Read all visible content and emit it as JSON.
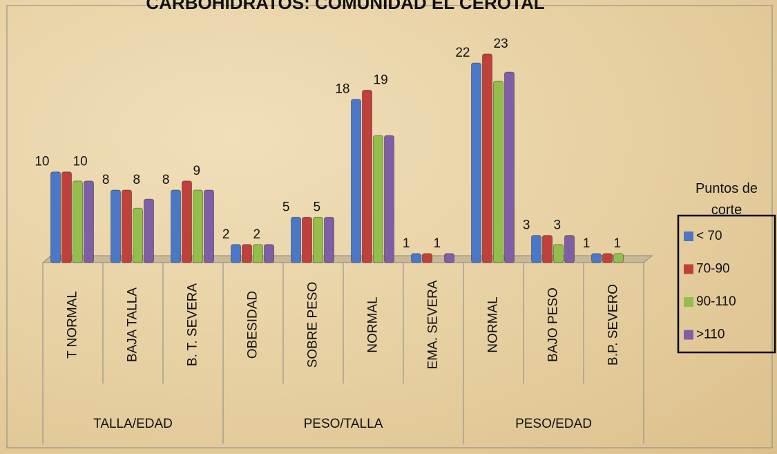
{
  "chart_data": {
    "type": "bar",
    "title": "CARBOHIDRATOS: COMUNIDAD EL CEROTAL",
    "categories": [
      "T NORMAL",
      "BAJA TALLA",
      "B. T. SEVERA",
      "OBESIDAD",
      "SOBRE PESO",
      "NORMAL",
      "EMA. SEVERA",
      "NORMAL",
      "BAJO PESO",
      "B.P. SEVERO"
    ],
    "groups": [
      {
        "name": "TALLA/EDAD",
        "size": 3
      },
      {
        "name": "PESO/TALLA",
        "size": 4
      },
      {
        "name": "PESO/EDAD",
        "size": 3
      }
    ],
    "legend_title": "Puntos de corte",
    "series": [
      {
        "name": "< 70",
        "color": "#4a78c8",
        "show_labels": true,
        "values": [
          10,
          8,
          8,
          2,
          5,
          18,
          1,
          22,
          3,
          1
        ]
      },
      {
        "name": "70-90",
        "color": "#c0403c",
        "show_labels": true,
        "values": [
          10,
          8,
          9,
          2,
          5,
          19,
          1,
          23,
          3,
          1
        ]
      },
      {
        "name": "90-110",
        "color": "#94be4c",
        "show_labels": false,
        "values": [
          9,
          6,
          8,
          2,
          5,
          14,
          0,
          20,
          2,
          1
        ]
      },
      {
        "name": ">110",
        "color": "#7e5fa6",
        "show_labels": false,
        "values": [
          9,
          7,
          8,
          2,
          5,
          14,
          1,
          21,
          3,
          0
        ]
      }
    ]
  }
}
